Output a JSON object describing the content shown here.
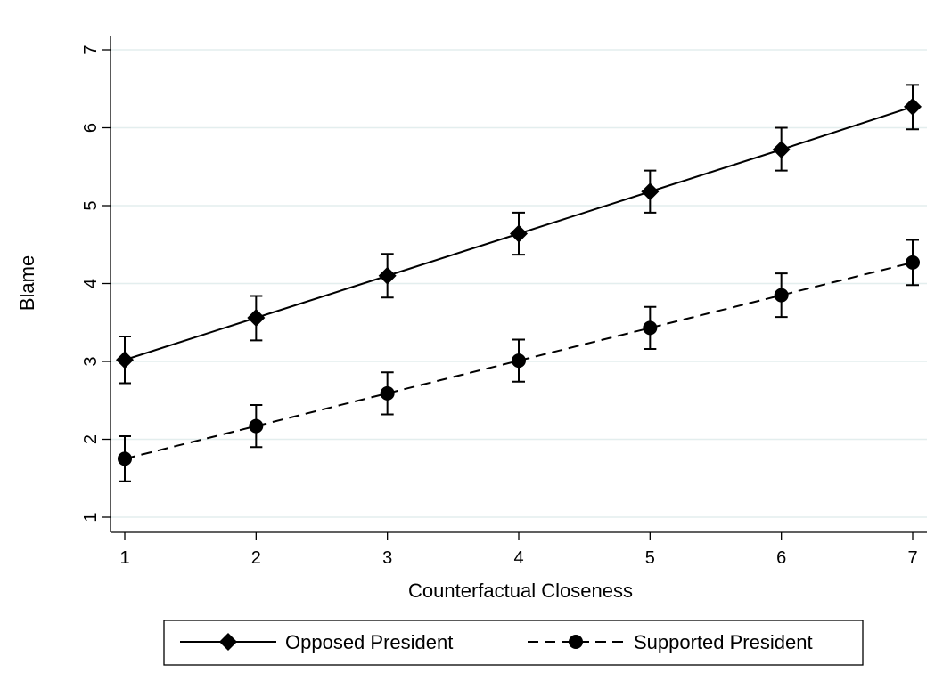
{
  "chart_data": {
    "type": "line",
    "xlabel": "Counterfactual Closeness",
    "ylabel": "Blame",
    "xlim": [
      1,
      7
    ],
    "ylim": [
      1,
      7
    ],
    "x_ticks": [
      1,
      2,
      3,
      4,
      5,
      6,
      7
    ],
    "y_ticks": [
      1,
      2,
      3,
      4,
      5,
      6,
      7
    ],
    "grid": "horizontal",
    "legend_position": "bottom",
    "series": [
      {
        "name": "Opposed President",
        "marker": "diamond",
        "line_style": "solid",
        "color": "#000000",
        "points": [
          {
            "x": 1,
            "y": 3.02,
            "lo": 2.72,
            "hi": 3.32
          },
          {
            "x": 2,
            "y": 3.56,
            "lo": 3.27,
            "hi": 3.84
          },
          {
            "x": 3,
            "y": 4.1,
            "lo": 3.82,
            "hi": 4.38
          },
          {
            "x": 4,
            "y": 4.64,
            "lo": 4.37,
            "hi": 4.91
          },
          {
            "x": 5,
            "y": 5.18,
            "lo": 4.91,
            "hi": 5.45
          },
          {
            "x": 6,
            "y": 5.72,
            "lo": 5.45,
            "hi": 6.0
          },
          {
            "x": 7,
            "y": 6.27,
            "lo": 5.98,
            "hi": 6.55
          }
        ]
      },
      {
        "name": "Supported President",
        "marker": "circle",
        "line_style": "dashed",
        "color": "#000000",
        "points": [
          {
            "x": 1,
            "y": 1.75,
            "lo": 1.46,
            "hi": 2.04
          },
          {
            "x": 2,
            "y": 2.17,
            "lo": 1.9,
            "hi": 2.44
          },
          {
            "x": 3,
            "y": 2.59,
            "lo": 2.32,
            "hi": 2.86
          },
          {
            "x": 4,
            "y": 3.01,
            "lo": 2.74,
            "hi": 3.28
          },
          {
            "x": 5,
            "y": 3.43,
            "lo": 3.16,
            "hi": 3.7
          },
          {
            "x": 6,
            "y": 3.85,
            "lo": 3.57,
            "hi": 4.13
          },
          {
            "x": 7,
            "y": 4.27,
            "lo": 3.98,
            "hi": 4.56
          }
        ]
      }
    ]
  },
  "colors": {
    "background": "#ffffff",
    "gridline": "#e3eeee",
    "ink": "#000000"
  }
}
